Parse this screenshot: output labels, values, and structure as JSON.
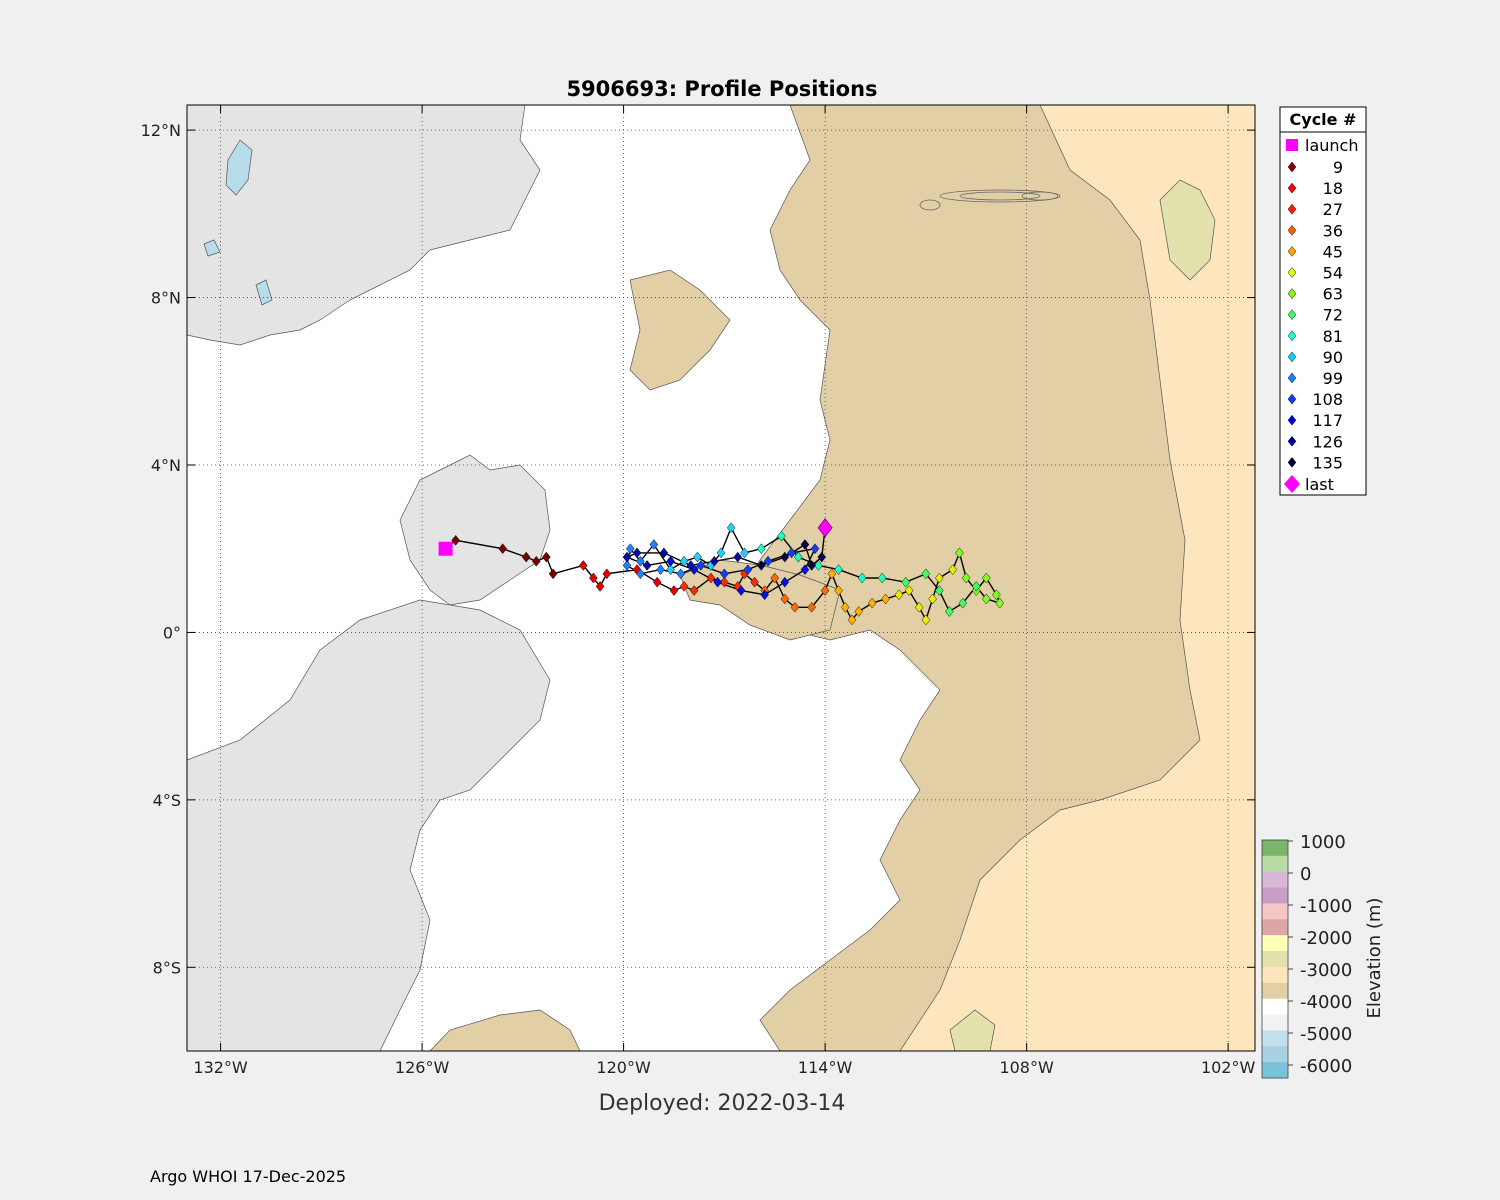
{
  "title": "5906693: Profile Positions",
  "subtitle": "Deployed: 2022-03-14",
  "footer": "Argo WHOI 17-Dec-2025",
  "map": {
    "lon_range": [
      -133,
      -101.2
    ],
    "lat_range": [
      -10,
      12.6
    ],
    "x_ticks": [
      {
        "v": -132,
        "label": "132°W"
      },
      {
        "v": -126,
        "label": "126°W"
      },
      {
        "v": -120,
        "label": "120°W"
      },
      {
        "v": -114,
        "label": "114°W"
      },
      {
        "v": -108,
        "label": "108°W"
      },
      {
        "v": -102,
        "label": "102°W"
      }
    ],
    "y_ticks": [
      {
        "v": 12,
        "label": "12°N"
      },
      {
        "v": 8,
        "label": "8°N"
      },
      {
        "v": 4,
        "label": "4°N"
      },
      {
        "v": 0,
        "label": "0°"
      },
      {
        "v": -4,
        "label": "4°S"
      },
      {
        "v": -8,
        "label": "8°S"
      }
    ],
    "grid": true,
    "launch": {
      "lon": -125.3,
      "lat": 2.0,
      "color": "#ff00ff"
    },
    "last": {
      "lon": -114.0,
      "lat": 2.5,
      "color": "#ff00ff"
    },
    "track": [
      [
        -125.3,
        2.0
      ],
      [
        -125.0,
        2.2
      ],
      [
        -123.6,
        2.0
      ],
      [
        -122.9,
        1.8
      ],
      [
        -122.6,
        1.7
      ],
      [
        -122.3,
        1.8
      ],
      [
        -122.1,
        1.4
      ],
      [
        -121.2,
        1.6
      ],
      [
        -120.9,
        1.3
      ],
      [
        -120.7,
        1.1
      ],
      [
        -120.5,
        1.4
      ],
      [
        -119.6,
        1.5
      ],
      [
        -119.0,
        1.2
      ],
      [
        -118.5,
        1.0
      ],
      [
        -118.2,
        1.1
      ],
      [
        -117.9,
        1.0
      ],
      [
        -117.4,
        1.3
      ],
      [
        -117.0,
        1.2
      ],
      [
        -116.6,
        1.1
      ],
      [
        -116.4,
        1.4
      ],
      [
        -116.1,
        1.2
      ],
      [
        -115.8,
        1.0
      ],
      [
        -115.5,
        1.3
      ],
      [
        -115.2,
        0.8
      ],
      [
        -114.9,
        0.6
      ],
      [
        -114.4,
        0.6
      ],
      [
        -114.0,
        1.0
      ],
      [
        -113.8,
        1.4
      ],
      [
        -113.6,
        1.0
      ],
      [
        -113.4,
        0.6
      ],
      [
        -113.2,
        0.3
      ],
      [
        -113.0,
        0.5
      ],
      [
        -112.6,
        0.7
      ],
      [
        -112.2,
        0.8
      ],
      [
        -111.8,
        0.9
      ],
      [
        -111.5,
        1.0
      ],
      [
        -111.2,
        0.6
      ],
      [
        -111.0,
        0.3
      ],
      [
        -110.8,
        0.8
      ],
      [
        -110.6,
        1.3
      ],
      [
        -110.2,
        1.5
      ],
      [
        -110.0,
        1.9
      ],
      [
        -109.8,
        1.3
      ],
      [
        -109.5,
        1.0
      ],
      [
        -109.2,
        1.3
      ],
      [
        -108.9,
        0.9
      ],
      [
        -108.8,
        0.7
      ],
      [
        -109.2,
        0.8
      ],
      [
        -109.5,
        1.1
      ],
      [
        -109.9,
        0.7
      ],
      [
        -110.3,
        0.5
      ],
      [
        -110.6,
        1.0
      ],
      [
        -111.0,
        1.4
      ],
      [
        -111.6,
        1.2
      ],
      [
        -112.3,
        1.3
      ],
      [
        -112.9,
        1.3
      ],
      [
        -113.6,
        1.5
      ],
      [
        -114.2,
        1.6
      ],
      [
        -114.8,
        1.8
      ],
      [
        -115.3,
        2.3
      ],
      [
        -115.9,
        2.0
      ],
      [
        -116.4,
        1.9
      ],
      [
        -116.8,
        2.5
      ],
      [
        -117.1,
        1.9
      ],
      [
        -117.4,
        1.6
      ],
      [
        -117.8,
        1.8
      ],
      [
        -118.2,
        1.7
      ],
      [
        -118.6,
        1.5
      ],
      [
        -119.1,
        2.1
      ],
      [
        -119.5,
        1.7
      ],
      [
        -119.8,
        2.0
      ],
      [
        -119.9,
        1.6
      ],
      [
        -119.5,
        1.4
      ],
      [
        -118.9,
        1.5
      ],
      [
        -118.3,
        1.4
      ],
      [
        -117.7,
        1.6
      ],
      [
        -117.0,
        1.4
      ],
      [
        -116.3,
        1.5
      ],
      [
        -115.7,
        1.7
      ],
      [
        -115.0,
        1.9
      ],
      [
        -114.3,
        2.0
      ],
      [
        -114.6,
        1.5
      ],
      [
        -115.2,
        1.2
      ],
      [
        -115.8,
        0.9
      ],
      [
        -116.5,
        1.0
      ],
      [
        -117.2,
        1.2
      ],
      [
        -117.9,
        1.5
      ],
      [
        -118.6,
        1.7
      ],
      [
        -119.3,
        1.6
      ],
      [
        -119.9,
        1.8
      ],
      [
        -119.6,
        1.9
      ],
      [
        -118.8,
        1.9
      ],
      [
        -118.0,
        1.6
      ],
      [
        -117.3,
        1.7
      ],
      [
        -116.6,
        1.8
      ],
      [
        -115.9,
        1.6
      ],
      [
        -115.2,
        1.8
      ],
      [
        -114.6,
        2.1
      ],
      [
        -114.4,
        1.6
      ],
      [
        -114.1,
        1.8
      ],
      [
        -114.0,
        2.5
      ]
    ],
    "cycle_colors": [
      "#7a0000",
      "#e00000",
      "#ff2a00",
      "#ff6a00",
      "#ffb000",
      "#e8f000",
      "#80ff20",
      "#40ff60",
      "#20ffc0",
      "#20d0ff",
      "#2080ff",
      "#1040ff",
      "#0010e0",
      "#0a0aa0",
      "#000040"
    ]
  },
  "legend": {
    "title": "Cycle #",
    "launch_label": "launch",
    "last_label": "last",
    "items": [
      {
        "label": "9",
        "color": "#8b0000"
      },
      {
        "label": "18",
        "color": "#ff0000"
      },
      {
        "label": "27",
        "color": "#ff1a00"
      },
      {
        "label": "36",
        "color": "#ff5a00"
      },
      {
        "label": "45",
        "color": "#ffa500"
      },
      {
        "label": "54",
        "color": "#e6ff00"
      },
      {
        "label": "63",
        "color": "#7cfc00"
      },
      {
        "label": "72",
        "color": "#32ff6a"
      },
      {
        "label": "81",
        "color": "#1affd0"
      },
      {
        "label": "90",
        "color": "#00d2ff"
      },
      {
        "label": "99",
        "color": "#1e7fff"
      },
      {
        "label": "108",
        "color": "#0a3cff"
      },
      {
        "label": "117",
        "color": "#0000e6"
      },
      {
        "label": "126",
        "color": "#00009c"
      },
      {
        "label": "135",
        "color": "#000040"
      }
    ]
  },
  "colorbar": {
    "label": "Elevation (m)",
    "tick_labels": [
      "1000",
      "0",
      "-1000",
      "-2000",
      "-3000",
      "-4000",
      "-5000",
      "-6000"
    ],
    "bands": [
      "#7bb46b",
      "#b9dba6",
      "#d7b8d7",
      "#c79ec7",
      "#f6c6c6",
      "#dea5a5",
      "#ffffb5",
      "#e3e1ac",
      "#fde6bd",
      "#e2cfa5",
      "#ffffff",
      "#f2f2f2",
      "#c4e0ef",
      "#a9d1e4",
      "#79c2da"
    ]
  }
}
